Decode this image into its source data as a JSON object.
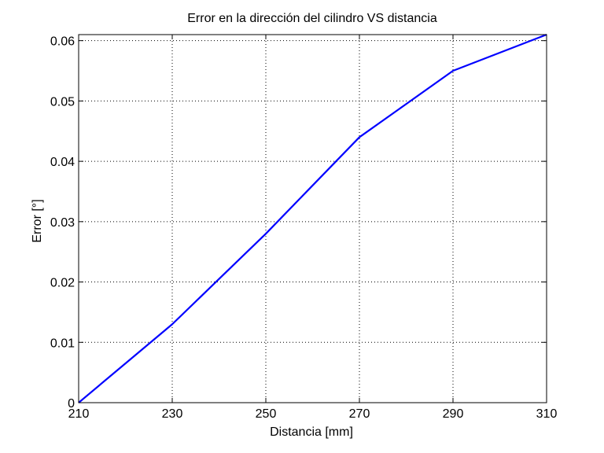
{
  "chart_data": {
    "type": "line",
    "title": "Error en la dirección del cilindro VS distancia",
    "xlabel": "Distancia [mm]",
    "ylabel": "Error [°]",
    "xlim": [
      210,
      310
    ],
    "ylim": [
      0,
      0.061
    ],
    "xticks": [
      210,
      230,
      250,
      270,
      290,
      310
    ],
    "yticks": [
      0,
      0.01,
      0.02,
      0.03,
      0.04,
      0.05,
      0.06
    ],
    "xtick_labels": [
      "210",
      "230",
      "250",
      "270",
      "290",
      "310"
    ],
    "ytick_labels": [
      "0",
      "0.01",
      "0.02",
      "0.03",
      "0.04",
      "0.05",
      "0.06"
    ],
    "grid": true,
    "series": [
      {
        "color": "#0000ff",
        "x": [
          210,
          220,
          230,
          240,
          250,
          260,
          270,
          280,
          290,
          300,
          310
        ],
        "y": [
          0,
          0.0065,
          0.013,
          0.0205,
          0.028,
          0.036,
          0.044,
          0.0495,
          0.055,
          0.058,
          0.061
        ]
      }
    ]
  }
}
